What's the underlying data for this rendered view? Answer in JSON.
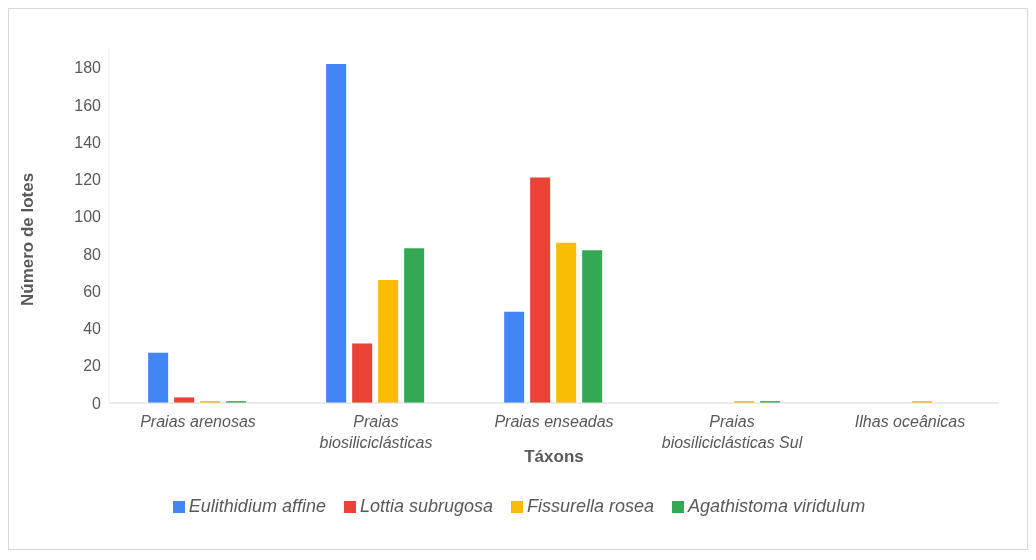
{
  "chart_data": {
    "type": "bar",
    "xlabel": "Táxons",
    "ylabel": "Número de lotes",
    "categories": [
      "Praias arenosas",
      "Praias biosiliciclásticas",
      "Praias enseadas",
      "Praias biosiliciclásticas Sul",
      "Ilhas oceânicas"
    ],
    "series": [
      {
        "name": "Eulithidium affine",
        "color": "#4285f4",
        "values": [
          27,
          182,
          49,
          0,
          0
        ]
      },
      {
        "name": "Lottia subrugosa",
        "color": "#ea4335",
        "values": [
          3,
          32,
          121,
          0,
          0
        ]
      },
      {
        "name": "Fissurella rosea",
        "color": "#fbbc04",
        "values": [
          1,
          66,
          86,
          1,
          1
        ]
      },
      {
        "name": "Agathistoma viridulum",
        "color": "#34a853",
        "values": [
          1,
          83,
          82,
          1,
          0
        ]
      }
    ],
    "ylim": [
      0,
      190
    ],
    "yticks": [
      0,
      20,
      40,
      60,
      80,
      100,
      120,
      140,
      160,
      180
    ],
    "grid": false,
    "legend": "bottom"
  }
}
